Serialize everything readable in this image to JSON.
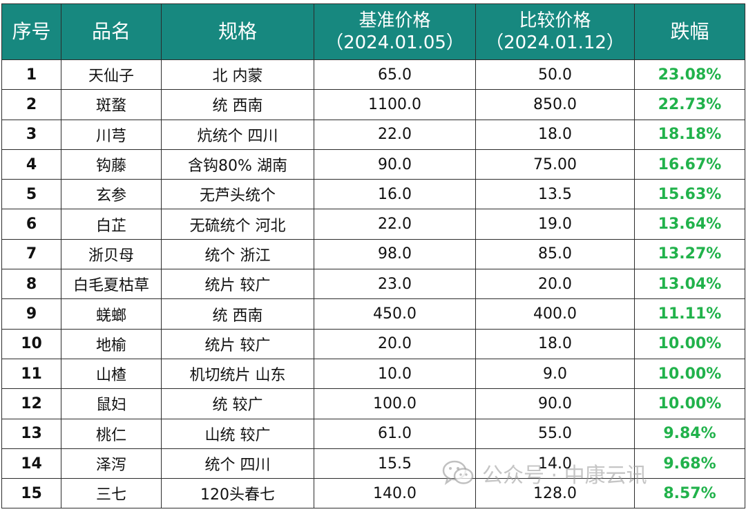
{
  "table": {
    "headers": {
      "idx": "序号",
      "name": "品名",
      "spec": "规格",
      "base_title": "基准价格",
      "base_date": "（2024.01.05）",
      "cmp_title": "比较价格",
      "cmp_date": "（2024.01.12）",
      "chg": "跌幅"
    },
    "rows": [
      {
        "idx": "1",
        "name": "天仙子",
        "spec": "北 内蒙",
        "base": "65.0",
        "cmp": "50.0",
        "chg": "23.08%"
      },
      {
        "idx": "2",
        "name": "斑蝥",
        "spec": "统 西南",
        "base": "1100.0",
        "cmp": "850.0",
        "chg": "22.73%"
      },
      {
        "idx": "3",
        "name": "川芎",
        "spec": "炕统个 四川",
        "base": "22.0",
        "cmp": "18.0",
        "chg": "18.18%"
      },
      {
        "idx": "4",
        "name": "钩藤",
        "spec": "含钩80% 湖南",
        "base": "90.0",
        "cmp": "75.00",
        "chg": "16.67%"
      },
      {
        "idx": "5",
        "name": "玄参",
        "spec": "无芦头统个",
        "base": "16.0",
        "cmp": "13.5",
        "chg": "15.63%"
      },
      {
        "idx": "6",
        "name": "白芷",
        "spec": "无硫统个 河北",
        "base": "22.0",
        "cmp": "19.0",
        "chg": "13.64%"
      },
      {
        "idx": "7",
        "name": "浙贝母",
        "spec": "统个 浙江",
        "base": "98.0",
        "cmp": "85.0",
        "chg": "13.27%"
      },
      {
        "idx": "8",
        "name": "白毛夏枯草",
        "spec": "统片 较广",
        "base": "23.0",
        "cmp": "20.0",
        "chg": "13.04%"
      },
      {
        "idx": "9",
        "name": "蜣螂",
        "spec": "统 西南",
        "base": "450.0",
        "cmp": "400.0",
        "chg": "11.11%"
      },
      {
        "idx": "10",
        "name": "地榆",
        "spec": "统片 较广",
        "base": "20.0",
        "cmp": "18.0",
        "chg": "10.00%"
      },
      {
        "idx": "11",
        "name": "山楂",
        "spec": "机切统片 山东",
        "base": "10.0",
        "cmp": "9.0",
        "chg": "10.00%"
      },
      {
        "idx": "12",
        "name": "鼠妇",
        "spec": "统 较广",
        "base": "100.0",
        "cmp": "90.0",
        "chg": "10.00%"
      },
      {
        "idx": "13",
        "name": "桃仁",
        "spec": "山统 较广",
        "base": "61.0",
        "cmp": "55.0",
        "chg": "9.84%"
      },
      {
        "idx": "14",
        "name": "泽泻",
        "spec": "统个 四川",
        "base": "15.5",
        "cmp": "14.0",
        "chg": "9.68%"
      },
      {
        "idx": "15",
        "name": "三七",
        "spec": "120头春七",
        "base": "140.0",
        "cmp": "128.0",
        "chg": "8.57%"
      }
    ]
  },
  "watermark": {
    "text": "公众号 · 中康云讯",
    "icon": "wechat-icon"
  },
  "colors": {
    "header_bg": "#17887f",
    "header_text": "#ffffff",
    "decline_text": "#21b24b",
    "border": "#2b2b2b"
  }
}
